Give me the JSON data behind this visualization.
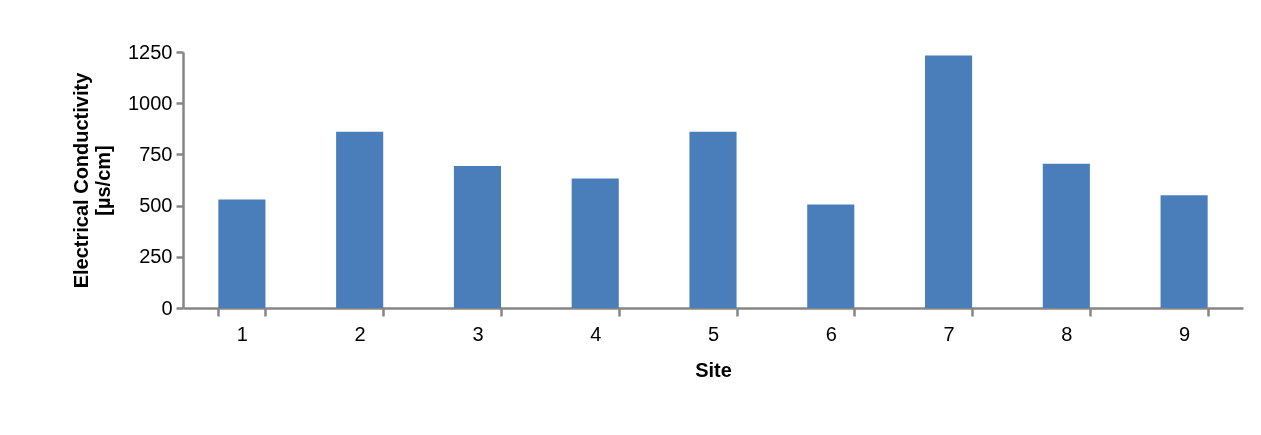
{
  "chart_data": {
    "type": "bar",
    "xlabel": "Site",
    "ylabel": "Electrical Conductivity\n[µs/cm]",
    "categories": [
      "1",
      "2",
      "3",
      "4",
      "5",
      "6",
      "7",
      "8",
      "9"
    ],
    "values": [
      530,
      861,
      693,
      632,
      861,
      505,
      1233,
      704,
      551
    ],
    "color": "#4a7ebb",
    "ylim": [
      0,
      1250
    ],
    "yticks": [
      0,
      250,
      500,
      750,
      1000,
      1250
    ],
    "grid": false
  }
}
